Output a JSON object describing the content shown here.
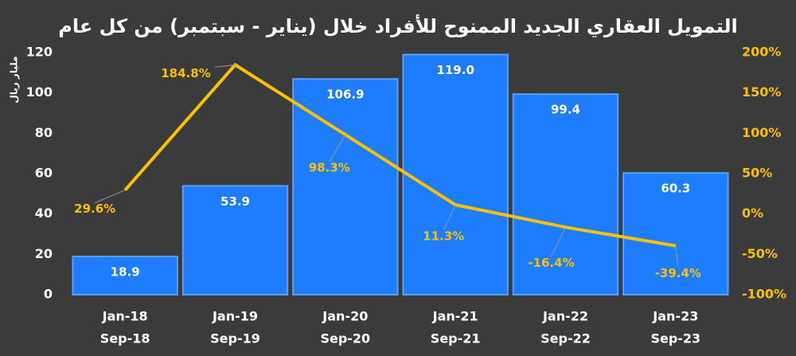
{
  "chart_data": {
    "type": "bar-line",
    "title": "التمويل العقاري الجديد الممنوح للأفراد خلال (يناير - سبتمبر) من كل عام",
    "ylabel": "مليار ريال",
    "categories": [
      [
        "Jan-18",
        "Sep-18"
      ],
      [
        "Jan-19",
        "Sep-19"
      ],
      [
        "Jan-20",
        "Sep-20"
      ],
      [
        "Jan-21",
        "Sep-21"
      ],
      [
        "Jan-22",
        "Sep-22"
      ],
      [
        "Jan-23",
        "Sep-23"
      ]
    ],
    "series": [
      {
        "type": "bar",
        "color": "#1e7cff",
        "values": [
          18.9,
          53.9,
          106.9,
          119.0,
          99.4,
          60.3
        ],
        "value_labels": [
          "18.9",
          "53.9",
          "106.9",
          "119.0",
          "99.4",
          "60.3"
        ]
      },
      {
        "type": "line",
        "axis": "y2",
        "color": "#ffc000",
        "values": [
          29.6,
          184.8,
          98.3,
          11.3,
          -16.4,
          -39.4
        ],
        "value_labels": [
          "29.6%",
          "184.8%",
          "98.3%",
          "11.3%",
          "-16.4%",
          "-39.4%"
        ]
      }
    ],
    "ylim": [
      0,
      120
    ],
    "yticks": [
      0,
      20,
      40,
      60,
      80,
      100,
      120
    ],
    "y2lim": [
      -100,
      200
    ],
    "y2ticks": [
      {
        "value": -100,
        "label": "-100%"
      },
      {
        "value": -50,
        "label": "-50%"
      },
      {
        "value": 0,
        "label": "0%"
      },
      {
        "value": 50,
        "label": "50%"
      },
      {
        "value": 100,
        "label": "100%"
      },
      {
        "value": 150,
        "label": "150%"
      },
      {
        "value": 200,
        "label": "200%"
      }
    ],
    "grid": false
  }
}
